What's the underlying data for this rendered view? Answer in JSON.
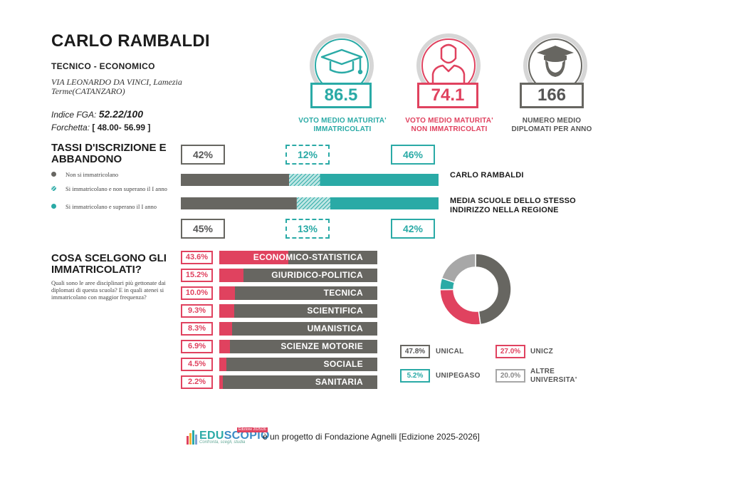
{
  "school": {
    "name": "CARLO RAMBALDI",
    "type": "TECNICO - ECONOMICO",
    "address": "VIA LEONARDO DA VINCI, Lamezia Terme(CATANZARO)",
    "fga_label": "Indice FGA:",
    "fga_value": "52.22/100",
    "forchetta_label": "Forchetta:",
    "forchetta_value": "[ 48.00- 56.99 ]"
  },
  "stats": [
    {
      "value": "86.5",
      "label_line1": "VOTO MEDIO MATURITA'",
      "label_line2": "IMMATRICOLATI",
      "color": "#2aaaa6",
      "icon": "graduation-cap-icon"
    },
    {
      "value": "74.1",
      "label_line1": "VOTO MEDIO MATURITA'",
      "label_line2": "NON IMMATRICOLATI",
      "color": "#e0425f",
      "icon": "person-icon"
    },
    {
      "value": "166",
      "label_line1": "NUMERO MEDIO",
      "label_line2": "DIPLOMATI PER ANNO",
      "color": "#676661",
      "icon": "graduate-student-icon"
    }
  ],
  "enrollment": {
    "title": "TASSI D'ISCRIZIONE E ABBANDONO",
    "legend": [
      {
        "text": "Non si immatricolano",
        "color": "#676661"
      },
      {
        "text": "Si immatricolano e non superano il I anno",
        "color": "#2aaaa6"
      },
      {
        "text": "Si immatricolano e superano il I anno",
        "color": "#2aaaa6"
      }
    ],
    "colors": {
      "not_enrolled": "#676661",
      "dropout": "#2aaaa6",
      "passed": "#2aaaa6"
    }
  },
  "choices": {
    "title": "COSA SCELGONO GLI IMMATRICOLATI?",
    "description": "Quali sono le aree disciplinari più gettonate dai diplomati di questa scuola? E in quali atenei si immatricolano con maggior frequenza?"
  },
  "chart_data": [
    {
      "type": "bar",
      "title": "TASSI D'ISCRIZIONE E ABBANDONO",
      "orientation": "horizontal-stacked",
      "categories": [
        "Non si immatricolano",
        "Si immatricolano e non superano il I anno",
        "Si immatricolano e superano il I anno"
      ],
      "series": [
        {
          "name": "CARLO RAMBALDI",
          "values": [
            42,
            12,
            46
          ],
          "labels": [
            "42%",
            "12%",
            "46%"
          ]
        },
        {
          "name": "MEDIA SCUOLE DELLO STESSO INDIRIZZO NELLA REGIONE",
          "values": [
            45,
            13,
            42
          ],
          "labels": [
            "45%",
            "13%",
            "42%"
          ]
        }
      ]
    },
    {
      "type": "bar",
      "title": "COSA SCELGONO GLI IMMATRICOLATI?",
      "orientation": "horizontal",
      "categories": [
        "ECONOMICO-STATISTICA",
        "GIURIDICO-POLITICA",
        "TECNICA",
        "SCIENTIFICA",
        "UMANISTICA",
        "SCIENZE MOTORIE",
        "SOCIALE",
        "SANITARIA"
      ],
      "values": [
        43.6,
        15.2,
        10.0,
        9.3,
        8.3,
        6.9,
        4.5,
        2.2
      ],
      "labels": [
        "43.6%",
        "15.2%",
        "10.0%",
        "9.3%",
        "8.3%",
        "6.9%",
        "4.5%",
        "2.2%"
      ],
      "xlim": [
        0,
        100
      ]
    },
    {
      "type": "pie",
      "style": "donut",
      "categories": [
        "UNICAL",
        "UNICZ",
        "UNIPEGASO",
        "ALTRE UNIVERSITA'"
      ],
      "values": [
        47.8,
        27.0,
        5.2,
        20.0
      ],
      "labels": [
        "47.8%",
        "27.0%",
        "5.2%",
        "20.0%"
      ],
      "colors": [
        "#676661",
        "#e0425f",
        "#2aaaa6",
        "#a7a7a7"
      ]
    }
  ],
  "footer": {
    "logo_text_a": "EDU",
    "logo_text_b": "SCOPIO",
    "logo_edition": "Edizione 2025/26",
    "logo_tagline": "Confronta, scegli, studia",
    "text": "è un progetto di Fondazione Agnelli [Edizione 2025-2026]"
  }
}
